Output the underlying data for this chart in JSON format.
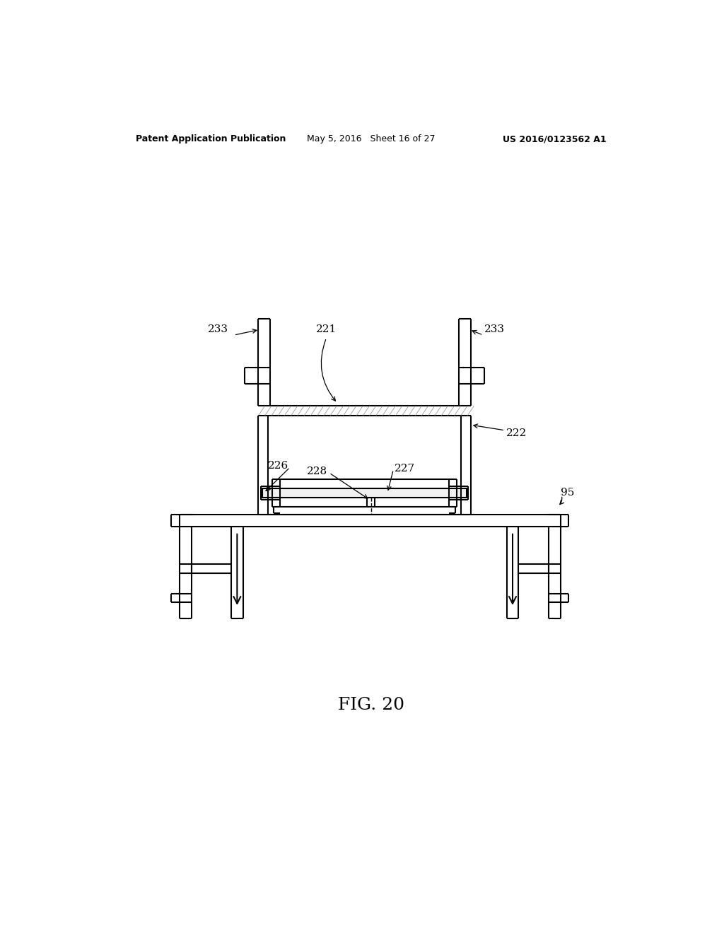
{
  "background_color": "#ffffff",
  "header_left": "Patent Application Publication",
  "header_center": "May 5, 2016   Sheet 16 of 27",
  "header_right": "US 2016/0123562 A1",
  "fig_label": "FIG. 20",
  "lw": 1.5
}
